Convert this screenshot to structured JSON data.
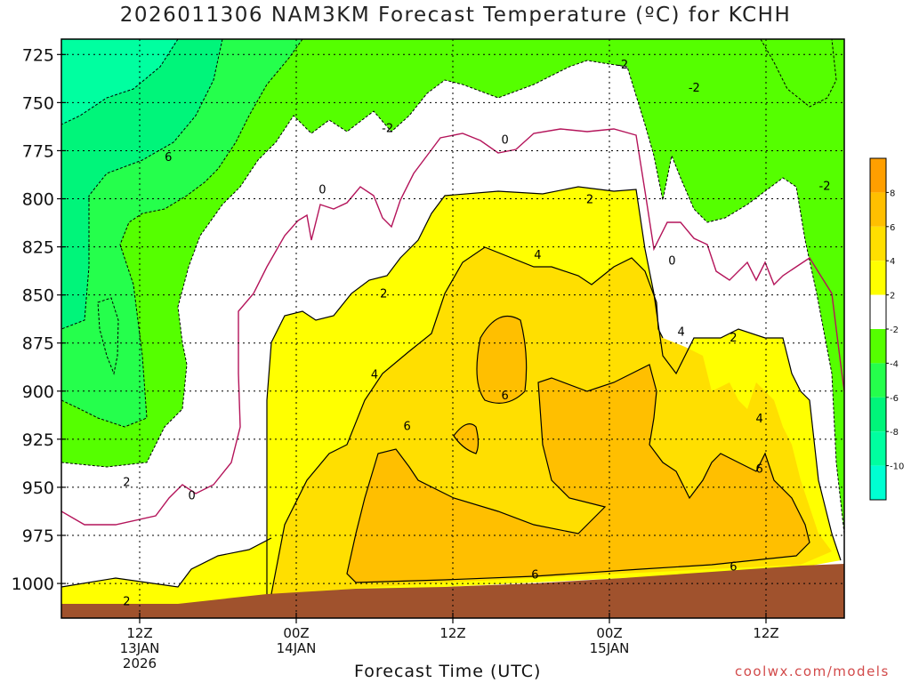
{
  "title": "2026011306 NAM3KM Forecast Temperature (ºC) for KCHH",
  "credit": "coolwx.com/models",
  "colors": {
    "lt_neg10": "#00ffd2",
    "neg10_neg8": "#00ffa0",
    "neg8_neg6": "#00f57a",
    "neg6_neg4": "#25ff4c",
    "neg4_neg2": "#55ff00",
    "neg2_2": "#ffffff",
    "2_4": "#ffff00",
    "4_6": "#ffdf00",
    "6_8": "#ffbf00",
    "gt_8": "#ff9f00",
    "ground": "#a0522d",
    "zero_line": "#b4145a"
  },
  "chart_data": {
    "type": "heatmap",
    "title": "2026011306 NAM3KM Forecast Temperature (ºC) for KCHH",
    "xlabel": "Forecast Time (UTC)",
    "ylabel": "",
    "x_ticks": [
      {
        "hour": 6,
        "lines": [
          "12Z",
          "13JAN",
          "2026"
        ]
      },
      {
        "hour": 18,
        "lines": [
          "00Z",
          "14JAN"
        ]
      },
      {
        "hour": 30,
        "lines": [
          "12Z"
        ]
      },
      {
        "hour": 42,
        "lines": [
          "00Z",
          "15JAN"
        ]
      },
      {
        "hour": 54,
        "lines": [
          "12Z"
        ]
      }
    ],
    "xlim": [
      0,
      60
    ],
    "y_ticks": [
      725,
      750,
      775,
      800,
      825,
      850,
      875,
      900,
      925,
      950,
      975,
      1000
    ],
    "ylim_hpa": [
      1018,
      717
    ],
    "colorbar": {
      "levels": [
        -10,
        -8,
        -6,
        -4,
        -2,
        2,
        4,
        6,
        8
      ],
      "tick_labels": [
        "-10",
        "-8",
        "-6",
        "-4",
        "-2",
        "2",
        "4",
        "6",
        "8"
      ]
    },
    "contour_labels": [
      {
        "text": "6",
        "hour": 8.2,
        "p": 778
      },
      {
        "text": "-2",
        "hour": 25.0,
        "p": 763
      },
      {
        "text": "0",
        "hour": 20.0,
        "p": 795
      },
      {
        "text": "0",
        "hour": 34.0,
        "p": 769
      },
      {
        "text": "-2",
        "hour": 43.0,
        "p": 730
      },
      {
        "text": "-2",
        "hour": 48.5,
        "p": 742
      },
      {
        "text": "-2",
        "hour": 58.5,
        "p": 793
      },
      {
        "text": "2",
        "hour": 40.5,
        "p": 800
      },
      {
        "text": "4",
        "hour": 36.5,
        "p": 829
      },
      {
        "text": "2",
        "hour": 24.7,
        "p": 849
      },
      {
        "text": "4",
        "hour": 24.0,
        "p": 891
      },
      {
        "text": "6",
        "hour": 34.0,
        "p": 902
      },
      {
        "text": "6",
        "hour": 26.5,
        "p": 918
      },
      {
        "text": "4",
        "hour": 47.5,
        "p": 869
      },
      {
        "text": "0",
        "hour": 46.8,
        "p": 832
      },
      {
        "text": "2",
        "hour": 51.5,
        "p": 872
      },
      {
        "text": "4",
        "hour": 53.5,
        "p": 914
      },
      {
        "text": "6",
        "hour": 53.5,
        "p": 940
      },
      {
        "text": "6",
        "hour": 51.5,
        "p": 991
      },
      {
        "text": "6",
        "hour": 36.3,
        "p": 995
      },
      {
        "text": "2",
        "hour": 5.0,
        "p": 947
      },
      {
        "text": "0",
        "hour": 10.0,
        "p": 954
      },
      {
        "text": "2",
        "hour": 5.0,
        "p": 1009
      }
    ]
  }
}
